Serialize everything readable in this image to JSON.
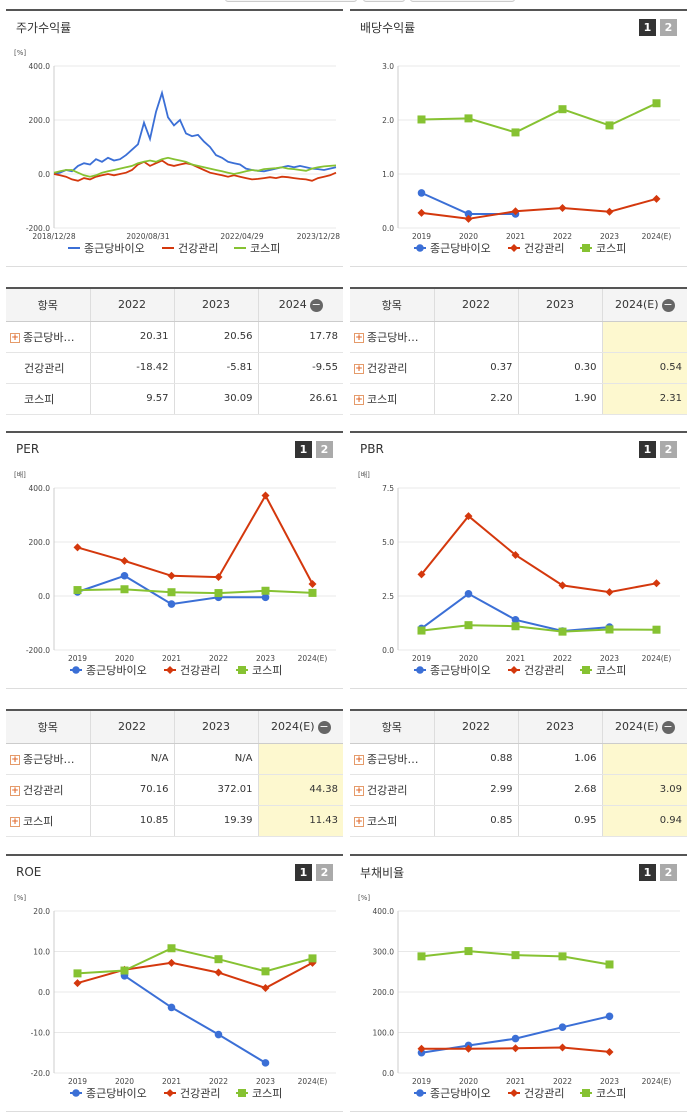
{
  "colors": {
    "blue": "#3b6fd6",
    "red": "#d4380d",
    "green": "#86c232",
    "estimate_bg": "#fdf8cf"
  },
  "panels": {
    "stock": {
      "title": "주가수익률",
      "chart_data": {
        "type": "line",
        "yunit": "[%]",
        "ylim": [
          -200,
          400
        ],
        "yticks": [
          "400.0",
          "200.0",
          "0.0",
          "-200.0"
        ],
        "xtick_labels": [
          "2018/12/28",
          "2020/08/31",
          "2022/04/29",
          "2023/12/28"
        ],
        "series": [
          {
            "name": "종근당바이오",
            "color": "#3b6fd6",
            "values": [
              0,
              5,
              15,
              10,
              30,
              40,
              35,
              55,
              45,
              60,
              50,
              55,
              70,
              90,
              110,
              190,
              130,
              230,
              300,
              210,
              180,
              200,
              150,
              140,
              145,
              120,
              100,
              70,
              60,
              45,
              40,
              35,
              20,
              15,
              12,
              10,
              15,
              20,
              25,
              30,
              25,
              30,
              25,
              20,
              18,
              15,
              20,
              25
            ]
          },
          {
            "name": "건강관리",
            "color": "#d4380d",
            "values": [
              0,
              -5,
              -10,
              -20,
              -25,
              -15,
              -20,
              -10,
              -5,
              0,
              -5,
              0,
              5,
              15,
              35,
              45,
              30,
              40,
              50,
              35,
              30,
              35,
              40,
              35,
              25,
              15,
              5,
              0,
              -5,
              -10,
              -5,
              -10,
              -15,
              -20,
              -18,
              -15,
              -12,
              -15,
              -10,
              -12,
              -15,
              -18,
              -20,
              -25,
              -15,
              -10,
              -5,
              5
            ]
          },
          {
            "name": "코스피",
            "color": "#86c232",
            "values": [
              5,
              10,
              15,
              15,
              5,
              -5,
              -10,
              -5,
              5,
              10,
              15,
              20,
              25,
              30,
              40,
              45,
              50,
              45,
              55,
              60,
              55,
              50,
              45,
              35,
              30,
              25,
              20,
              15,
              10,
              5,
              0,
              5,
              10,
              15,
              12,
              18,
              20,
              22,
              25,
              20,
              18,
              15,
              12,
              20,
              25,
              28,
              30,
              32
            ]
          }
        ]
      },
      "legend": [
        "종근당바이오",
        "건강관리",
        "코스피"
      ]
    },
    "dividend": {
      "title": "배당수익률",
      "pager": [
        "1",
        "2"
      ],
      "chart_data": {
        "type": "line",
        "yunit": "",
        "ylim": [
          0,
          3
        ],
        "yticks": [
          "3.0",
          "2.0",
          "1.0",
          "0.0"
        ],
        "categories": [
          "2019",
          "2020",
          "2021",
          "2022",
          "2023",
          "2024(E)"
        ],
        "series": [
          {
            "name": "종근당바이오",
            "color": "#3b6fd6",
            "marker": "circle",
            "values": [
              0.65,
              0.26,
              0.26,
              null,
              null,
              null
            ]
          },
          {
            "name": "건강관리",
            "color": "#d4380d",
            "marker": "diamond",
            "values": [
              0.28,
              0.17,
              0.31,
              0.37,
              0.3,
              0.54
            ]
          },
          {
            "name": "코스피",
            "color": "#86c232",
            "marker": "square",
            "values": [
              2.01,
              2.03,
              1.77,
              2.2,
              1.9,
              2.31
            ]
          }
        ]
      },
      "legend": [
        "종근당바이오",
        "건강관리",
        "코스피"
      ]
    },
    "per": {
      "title": "PER",
      "pager": [
        "1",
        "2"
      ],
      "chart_data": {
        "type": "line",
        "yunit": "[배]",
        "ylim": [
          -200,
          400
        ],
        "yticks": [
          "400.0",
          "200.0",
          "0.0",
          "-200.0"
        ],
        "categories": [
          "2019",
          "2020",
          "2021",
          "2022",
          "2023",
          "2024(E)"
        ],
        "series": [
          {
            "name": "종근당바이오",
            "color": "#3b6fd6",
            "marker": "circle",
            "values": [
              15,
              75,
              -30,
              -5,
              -5,
              null
            ]
          },
          {
            "name": "건강관리",
            "color": "#d4380d",
            "marker": "diamond",
            "values": [
              180,
              130,
              75,
              70.16,
              372.01,
              44.38
            ]
          },
          {
            "name": "코스피",
            "color": "#86c232",
            "marker": "square",
            "values": [
              22,
              25,
              14,
              10.85,
              19.39,
              11.43
            ]
          }
        ]
      },
      "legend": [
        "종근당바이오",
        "건강관리",
        "코스피"
      ]
    },
    "pbr": {
      "title": "PBR",
      "pager": [
        "1",
        "2"
      ],
      "chart_data": {
        "type": "line",
        "yunit": "[배]",
        "ylim": [
          0,
          7.5
        ],
        "yticks": [
          "7.5",
          "5.0",
          "2.5",
          "0.0"
        ],
        "categories": [
          "2019",
          "2020",
          "2021",
          "2022",
          "2023",
          "2024(E)"
        ],
        "series": [
          {
            "name": "종근당바이오",
            "color": "#3b6fd6",
            "marker": "circle",
            "values": [
              1.0,
              2.6,
              1.4,
              0.88,
              1.06,
              null
            ]
          },
          {
            "name": "건강관리",
            "color": "#d4380d",
            "marker": "diamond",
            "values": [
              3.5,
              6.2,
              4.4,
              2.99,
              2.68,
              3.09
            ]
          },
          {
            "name": "코스피",
            "color": "#86c232",
            "marker": "square",
            "values": [
              0.9,
              1.15,
              1.1,
              0.85,
              0.95,
              0.94
            ]
          }
        ]
      },
      "legend": [
        "종근당바이오",
        "건강관리",
        "코스피"
      ]
    },
    "roe": {
      "title": "ROE",
      "pager": [
        "1",
        "2"
      ],
      "chart_data": {
        "type": "line",
        "yunit": "[%]",
        "ylim": [
          -20,
          20
        ],
        "yticks": [
          "20.0",
          "10.0",
          "0.0",
          "-10.0",
          "-20.0"
        ],
        "categories": [
          "2019",
          "2020",
          "2021",
          "2022",
          "2023",
          "2024(E)"
        ],
        "series": [
          {
            "name": "종근당바이오",
            "color": "#3b6fd6",
            "marker": "circle",
            "values": [
              null,
              4.0,
              -3.8,
              -10.5,
              -17.5,
              null
            ]
          },
          {
            "name": "건강관리",
            "color": "#d4380d",
            "marker": "diamond",
            "values": [
              2.2,
              5.5,
              7.2,
              4.8,
              1.0,
              7.2
            ]
          },
          {
            "name": "코스피",
            "color": "#86c232",
            "marker": "square",
            "values": [
              4.6,
              5.3,
              10.8,
              8.1,
              5.1,
              8.3
            ]
          }
        ]
      },
      "legend": [
        "종근당바이오",
        "건강관리",
        "코스피"
      ]
    },
    "debt": {
      "title": "부채비율",
      "pager": [
        "1",
        "2"
      ],
      "chart_data": {
        "type": "line",
        "yunit": "[%]",
        "ylim": [
          0,
          400
        ],
        "yticks": [
          "400.0",
          "300.0",
          "200.0",
          "100.0",
          "0.0"
        ],
        "categories": [
          "2019",
          "2020",
          "2021",
          "2022",
          "2023",
          "2024(E)"
        ],
        "series": [
          {
            "name": "종근당바이오",
            "color": "#3b6fd6",
            "marker": "circle",
            "values": [
              50,
              68,
              85,
              113,
              140,
              null
            ]
          },
          {
            "name": "건강관리",
            "color": "#d4380d",
            "marker": "diamond",
            "values": [
              60,
              60,
              61,
              63,
              52,
              null
            ]
          },
          {
            "name": "코스피",
            "color": "#86c232",
            "marker": "square",
            "values": [
              288,
              301,
              291,
              288,
              268,
              null
            ]
          }
        ]
      },
      "legend": [
        "종근당바이오",
        "건강관리",
        "코스피"
      ]
    }
  },
  "tables": {
    "stock": {
      "header": [
        "항목",
        "2022",
        "2023",
        "2024"
      ],
      "rows": [
        {
          "name": "종근당바…",
          "expand": true,
          "cells": [
            "20.31",
            "20.56",
            "17.78"
          ]
        },
        {
          "name": "건강관리",
          "expand": false,
          "cells": [
            "-18.42",
            "-5.81",
            "-9.55"
          ]
        },
        {
          "name": "코스피",
          "expand": false,
          "cells": [
            "9.57",
            "30.09",
            "26.61"
          ]
        }
      ]
    },
    "dividend": {
      "header": [
        "항목",
        "2022",
        "2023",
        "2024(E)"
      ],
      "rows": [
        {
          "name": "종근당바…",
          "expand": true,
          "cells": [
            "",
            "",
            ""
          ]
        },
        {
          "name": "건강관리",
          "expand": true,
          "cells": [
            "0.37",
            "0.30",
            "0.54"
          ]
        },
        {
          "name": "코스피",
          "expand": true,
          "cells": [
            "2.20",
            "1.90",
            "2.31"
          ]
        }
      ]
    },
    "per": {
      "header": [
        "항목",
        "2022",
        "2023",
        "2024(E)"
      ],
      "rows": [
        {
          "name": "종근당바…",
          "expand": true,
          "cells": [
            "N/A",
            "N/A",
            ""
          ]
        },
        {
          "name": "건강관리",
          "expand": true,
          "cells": [
            "70.16",
            "372.01",
            "44.38"
          ]
        },
        {
          "name": "코스피",
          "expand": true,
          "cells": [
            "10.85",
            "19.39",
            "11.43"
          ]
        }
      ]
    },
    "pbr": {
      "header": [
        "항목",
        "2022",
        "2023",
        "2024(E)"
      ],
      "rows": [
        {
          "name": "종근당바…",
          "expand": true,
          "cells": [
            "0.88",
            "1.06",
            ""
          ]
        },
        {
          "name": "건강관리",
          "expand": true,
          "cells": [
            "2.99",
            "2.68",
            "3.09"
          ]
        },
        {
          "name": "코스피",
          "expand": true,
          "cells": [
            "0.85",
            "0.95",
            "0.94"
          ]
        }
      ]
    }
  },
  "icons": {
    "expand": "plus-icon",
    "collapse": "minus-icon"
  }
}
